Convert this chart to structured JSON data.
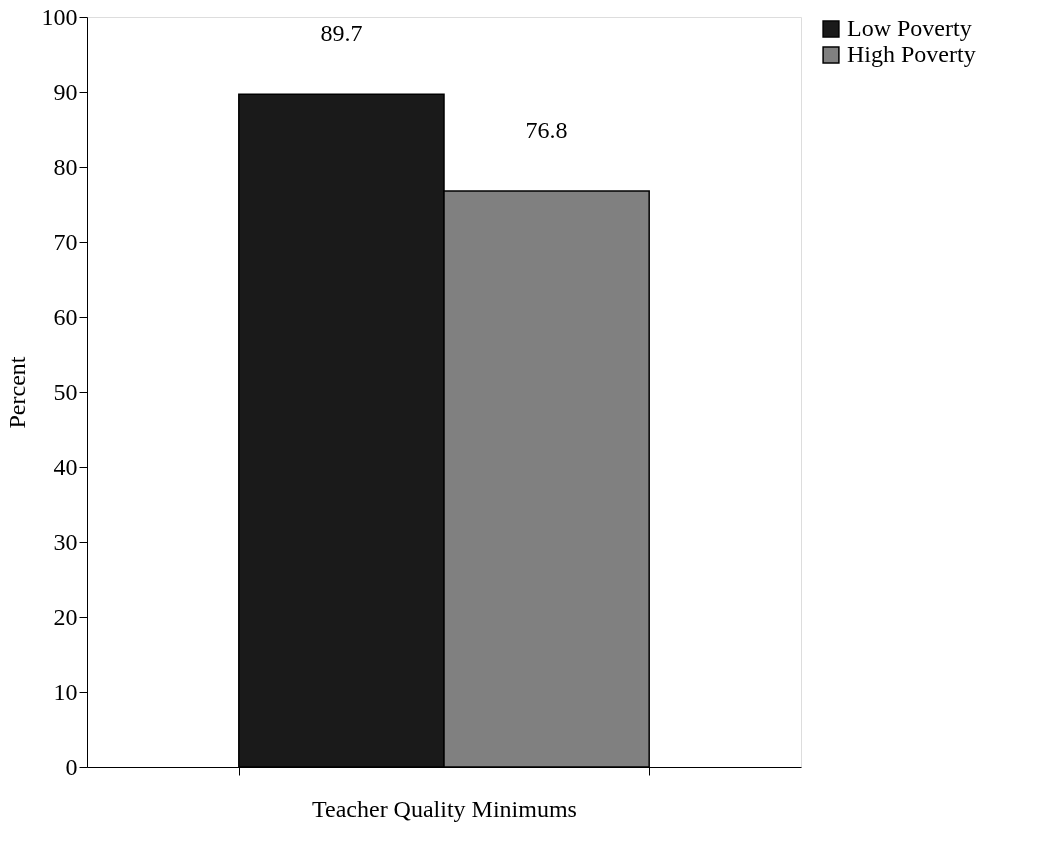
{
  "chart_data": {
    "type": "bar",
    "ylabel": "Percent",
    "categories": [
      "Teacher Quality Minimums"
    ],
    "series": [
      {
        "name": "Low Poverty",
        "color": "#1a1a1a",
        "values": [
          89.7
        ]
      },
      {
        "name": "High Poverty",
        "color": "#808080",
        "values": [
          76.8
        ]
      }
    ],
    "ylim": [
      0,
      100
    ],
    "yticks": [
      0,
      10,
      20,
      30,
      40,
      50,
      60,
      70,
      80,
      90,
      100
    ],
    "grid": false,
    "legend": "right",
    "data_labels": true
  }
}
